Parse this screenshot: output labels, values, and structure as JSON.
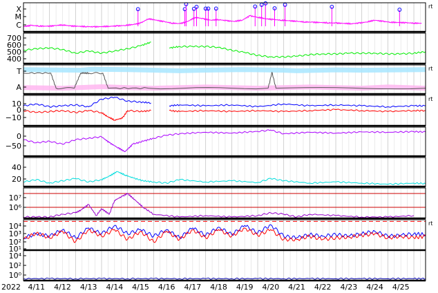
{
  "chart_data": {
    "type": "line",
    "x_axis": {
      "year_label": "2022",
      "tick_labels": [
        "4/11",
        "4/12",
        "4/13",
        "4/14",
        "4/15",
        "4/16",
        "4/17",
        "4/18",
        "4/19",
        "4/20",
        "4/21",
        "4/22",
        "4/23",
        "4/24",
        "4/25"
      ],
      "range_days": [
        0,
        15.45
      ],
      "grid": true
    },
    "panels": [
      {
        "id": "xray-class",
        "y_tick_labels": [
          "X",
          "M",
          "C"
        ],
        "right_mark": "rt",
        "series": [
          {
            "color": "#ff00ff",
            "style": "line",
            "x": [
              0.0,
              0.3,
              0.6,
              0.9,
              1.2,
              1.5,
              1.8,
              2.1,
              2.4,
              2.7,
              3.0,
              3.3,
              3.6,
              3.9,
              4.2,
              4.5,
              4.8,
              5.1,
              5.4,
              5.7,
              6.0,
              6.3,
              6.6,
              6.9,
              7.2,
              7.5,
              7.8,
              8.1,
              8.4,
              8.7,
              9.0,
              9.3,
              9.6,
              9.9,
              10.2,
              10.5,
              10.8,
              11.1,
              11.4,
              11.7,
              12.0,
              12.3,
              12.6,
              12.9,
              13.2,
              13.5,
              13.8,
              14.1,
              14.4,
              14.7,
              15.0,
              15.3
            ],
            "y": [
              0.18,
              0.22,
              0.2,
              0.19,
              0.21,
              0.24,
              0.2,
              0.19,
              0.18,
              0.17,
              0.18,
              0.19,
              0.2,
              0.22,
              0.25,
              0.3,
              0.45,
              0.4,
              0.35,
              0.3,
              0.28,
              0.35,
              0.5,
              0.45,
              0.4,
              0.42,
              0.38,
              0.36,
              0.4,
              0.55,
              0.5,
              0.45,
              0.42,
              0.4,
              0.38,
              0.36,
              0.34,
              0.33,
              0.32,
              0.31,
              0.3,
              0.29,
              0.28,
              0.3,
              0.34,
              0.4,
              0.36,
              0.33,
              0.32,
              0.31,
              0.3,
              0.29
            ]
          },
          {
            "color": "#0000ff",
            "style": "markers",
            "x": [
              4.4,
              6.2,
              6.25,
              6.55,
              6.65,
              7.0,
              7.1,
              7.4,
              8.9,
              9.15,
              9.3,
              9.65,
              10.05,
              11.85,
              14.45
            ],
            "y": [
              0.78,
              0.78,
              0.95,
              0.79,
              0.86,
              0.8,
              0.8,
              0.8,
              0.87,
              0.93,
              0.98,
              0.81,
              0.93,
              0.86,
              0.76
            ]
          }
        ]
      },
      {
        "id": "solar-wind-speed",
        "y_tick_labels": [
          "700",
          "600",
          "500",
          "400"
        ],
        "series": [
          {
            "color": "#00ee00",
            "style": "line",
            "x": [
              0.0,
              0.5,
              1.0,
              1.5,
              2.0,
              2.5,
              3.0,
              3.5,
              4.0,
              4.5,
              4.9,
              5.0,
              5.1,
              5.6,
              6.0,
              6.5,
              7.0,
              7.5,
              8.0,
              8.5,
              9.0,
              9.5,
              10.0,
              10.5,
              11.0,
              11.5,
              12.0,
              12.5,
              13.0,
              13.5,
              14.0,
              14.5,
              15.0,
              15.45
            ],
            "y": [
              510,
              530,
              540,
              520,
              470,
              500,
              470,
              500,
              530,
              570,
              620,
              null,
              null,
              540,
              560,
              560,
              560,
              550,
              510,
              480,
              440,
              420,
              420,
              430,
              450,
              460,
              460,
              470,
              470,
              470,
              460,
              460,
              470,
              490
            ]
          }
        ]
      },
      {
        "id": "imf-sector",
        "y_tick_labels": [
          "T",
          "A"
        ],
        "right_mark": "rt",
        "series": [
          {
            "color": "#a8e6ff",
            "style": "band",
            "x": [
              0.0,
              2.2,
              2.6,
              4.0,
              6.0,
              6.8,
              8.4,
              10.0,
              10.5,
              12.0,
              13.0,
              15.45
            ],
            "y": [
              0.84,
              0.82,
              0.85,
              0.84,
              0.8,
              0.82,
              0.84,
              0.82,
              0.8,
              0.83,
              0.82,
              0.84
            ]
          },
          {
            "color": "#ffb6f0",
            "style": "band",
            "x": [
              0.0,
              1.5,
              3.0,
              4.0,
              5.0,
              6.0,
              7.0,
              8.0,
              9.0,
              10.0,
              11.0,
              12.0,
              13.0,
              14.0,
              15.45
            ],
            "y": [
              0.22,
              0.2,
              0.25,
              0.22,
              0.2,
              0.22,
              0.24,
              0.22,
              0.2,
              0.22,
              0.24,
              0.22,
              0.2,
              0.24,
              0.2
            ]
          },
          {
            "color": "#555555",
            "style": "line",
            "x": [
              0.0,
              1.05,
              1.25,
              1.95,
              2.2,
              2.4,
              2.5,
              3.05,
              3.25,
              4.8,
              9.4,
              9.55,
              9.7,
              15.45
            ],
            "y": [
              0.72,
              0.72,
              0.2,
              0.2,
              0.72,
              0.72,
              0.72,
              0.72,
              0.2,
              0.2,
              0.2,
              0.75,
              0.2,
              0.2
            ]
          }
        ]
      },
      {
        "id": "imf-components",
        "y_tick_labels": [
          "10",
          "0",
          "−10"
        ],
        "right_mark": "rt",
        "series": [
          {
            "color": "#0000ff",
            "style": "line",
            "x": [
              0.0,
              0.5,
              1.0,
              1.5,
              2.0,
              2.5,
              3.0,
              3.5,
              4.0,
              4.5,
              4.9,
              5.0,
              5.1,
              5.6,
              6.0,
              7.0,
              8.0,
              9.0,
              10.0,
              11.0,
              12.0,
              13.0,
              14.0,
              15.0,
              15.45
            ],
            "y": [
              3,
              5,
              2,
              3,
              4,
              2,
              10,
              12,
              8,
              7,
              6,
              null,
              null,
              3,
              4,
              3,
              4,
              2,
              5,
              3,
              4,
              3,
              2,
              3,
              3
            ]
          },
          {
            "color": "#ff0000",
            "style": "line",
            "x": [
              0.0,
              0.5,
              1.0,
              1.5,
              2.0,
              2.5,
              3.0,
              3.2,
              3.5,
              3.8,
              4.0,
              4.5,
              4.9,
              5.0,
              5.1,
              5.6,
              6.0,
              7.0,
              8.0,
              9.0,
              10.0,
              11.0,
              12.0,
              13.0,
              14.0,
              15.0,
              15.45
            ],
            "y": [
              -2,
              -4,
              -3,
              -2,
              -4,
              -2,
              -4,
              -8,
              -12,
              -10,
              -2,
              -3,
              -2,
              null,
              null,
              -2,
              -3,
              -2,
              -3,
              -2,
              -3,
              -2,
              -1,
              -2,
              -3,
              -2,
              -2
            ]
          }
        ]
      },
      {
        "id": "dst",
        "y_tick_labels": [
          "0",
          "−50"
        ],
        "series": [
          {
            "color": "#aa00ff",
            "style": "line",
            "x": [
              0.0,
              0.5,
              1.0,
              1.5,
              2.0,
              2.5,
              3.0,
              3.3,
              3.6,
              3.9,
              4.2,
              4.6,
              5.0,
              5.5,
              6.0,
              7.0,
              8.0,
              9.0,
              9.5,
              10.0,
              11.0,
              12.0,
              13.0,
              14.0,
              15.0,
              15.45
            ],
            "y": [
              -30,
              -40,
              -35,
              -45,
              -30,
              -25,
              -20,
              -40,
              -55,
              -70,
              -45,
              -35,
              -25,
              -15,
              -10,
              -5,
              -8,
              -2,
              2,
              -10,
              -5,
              -8,
              -4,
              -5,
              -3,
              -4
            ]
          }
        ]
      },
      {
        "id": "kp",
        "y_tick_labels": [
          "40",
          "20"
        ],
        "series": [
          {
            "color": "#00dddd",
            "style": "line",
            "x": [
              0.0,
              0.5,
              1.0,
              1.5,
              2.0,
              2.5,
              3.0,
              3.3,
              3.6,
              3.9,
              4.2,
              4.6,
              5.0,
              5.5,
              6.0,
              7.0,
              8.0,
              9.0,
              9.5,
              10.0,
              11.0,
              12.0,
              13.0,
              14.0,
              15.0,
              15.45
            ],
            "y": [
              8,
              12,
              6,
              10,
              14,
              8,
              12,
              18,
              26,
              20,
              15,
              10,
              8,
              6,
              12,
              8,
              10,
              7,
              14,
              10,
              6,
              8,
              6,
              4,
              6,
              5
            ]
          }
        ]
      },
      {
        "id": "electron-flux",
        "y_tick_labels": [
          "10⁷",
          "10⁶"
        ],
        "reference_lines": [
          {
            "color": "#cc0000",
            "value_exp": 7
          },
          {
            "color": "#cc0000",
            "value_exp": 6
          }
        ],
        "series": [
          {
            "color": "#9900cc",
            "style": "line",
            "x": [
              0.0,
              0.5,
              1.0,
              1.5,
              2.0,
              2.2,
              2.5,
              2.8,
              3.0,
              3.3,
              3.5,
              3.8,
              4.0,
              4.3,
              4.6,
              5.0,
              6.0,
              7.0,
              8.0,
              9.0,
              9.5,
              10.0,
              10.5,
              11.0,
              12.0,
              13.0,
              14.0,
              15.0
            ],
            "y": [
              5.3,
              5.3,
              5.3,
              5.5,
              5.6,
              5.8,
              6.2,
              5.4,
              5.9,
              5.5,
              6.5,
              6.8,
              7.0,
              6.5,
              6.0,
              5.5,
              5.3,
              5.4,
              5.3,
              5.4,
              5.6,
              5.5,
              5.3,
              5.5,
              5.4,
              5.3,
              5.3,
              5.4
            ]
          }
        ]
      },
      {
        "id": "proton-flux",
        "y_tick_labels": [
          "10⁴",
          "10³",
          "10²",
          "10¹"
        ],
        "right_mark": "rt",
        "reference_lines": [
          {
            "color": "#ff0000",
            "value_exp": 4,
            "dashed": true
          }
        ],
        "series": [
          {
            "color": "#0000ff",
            "style": "line",
            "x": [
              0.0,
              0.5,
              1.0,
              1.5,
              2.0,
              2.5,
              3.0,
              3.5,
              4.0,
              4.5,
              5.0,
              5.5,
              6.0,
              6.5,
              7.0,
              7.5,
              8.0,
              8.5,
              9.0,
              9.5,
              10.0,
              10.5,
              11.0,
              11.5,
              12.0,
              12.5,
              13.0,
              13.5,
              14.0,
              14.5,
              15.0,
              15.45
            ],
            "y": [
              2.0,
              2.5,
              2.2,
              3.0,
              2.0,
              3.2,
              2.5,
              3.5,
              2.5,
              3.0,
              2.2,
              3.0,
              2.0,
              3.2,
              2.3,
              3.3,
              2.4,
              3.5,
              2.6,
              3.6,
              2.2,
              2.0,
              2.4,
              2.2,
              2.4,
              2.2,
              2.5,
              2.8,
              2.2,
              2.3,
              2.5,
              2.4
            ]
          },
          {
            "color": "#ff0000",
            "style": "line",
            "x": [
              0.0,
              0.5,
              1.0,
              1.5,
              2.0,
              2.5,
              3.0,
              3.5,
              4.0,
              4.5,
              5.0,
              5.5,
              6.0,
              6.5,
              7.0,
              7.5,
              8.0,
              8.5,
              9.0,
              9.5,
              10.0,
              10.5,
              11.0,
              11.5,
              12.0,
              12.5,
              13.0,
              13.5,
              14.0,
              14.5,
              15.0,
              15.45
            ],
            "y": [
              1.8,
              2.6,
              2.0,
              2.8,
              1.5,
              3.0,
              2.2,
              3.0,
              1.8,
              2.8,
              1.5,
              2.8,
              1.8,
              3.0,
              2.0,
              3.0,
              2.2,
              3.2,
              2.3,
              3.0,
              1.8,
              1.8,
              2.2,
              1.8,
              2.0,
              2.1,
              2.3,
              2.5,
              2.0,
              2.2,
              2.0,
              2.2
            ]
          }
        ]
      },
      {
        "id": "neutron",
        "y_tick_labels": [
          "10⁴",
          "10²",
          "10⁰"
        ],
        "series": [
          {
            "color": "#0000aa",
            "style": "line",
            "x": [
              0.0,
              1.0,
              2.0,
              3.0,
              4.0,
              5.0,
              6.0,
              7.0,
              8.0,
              9.0,
              10.0,
              11.0,
              12.0,
              13.0,
              14.0,
              15.0,
              15.45
            ],
            "y": [
              -0.3,
              -0.3,
              -0.3,
              -0.3,
              -0.3,
              -0.3,
              -0.3,
              -0.3,
              -0.3,
              -0.3,
              -0.3,
              -0.3,
              -0.3,
              -0.3,
              -0.3,
              -0.3,
              -0.3
            ]
          }
        ]
      }
    ]
  }
}
